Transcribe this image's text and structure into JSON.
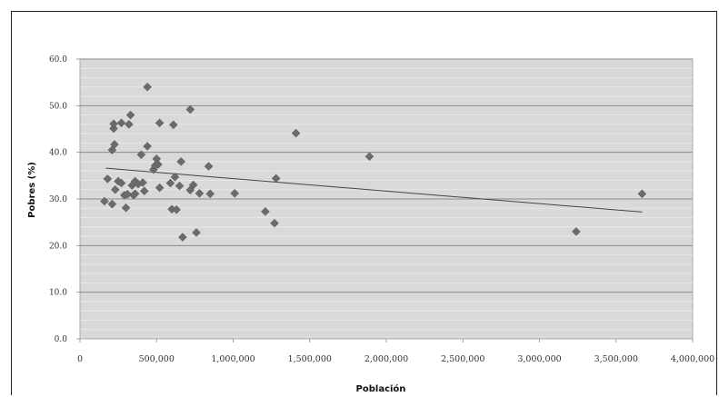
{
  "chart_data": {
    "type": "scatter",
    "title": "",
    "xlabel": "Población",
    "ylabel": "Pobres (%)",
    "xlim": [
      0,
      4000000
    ],
    "ylim": [
      0,
      60
    ],
    "x_ticks": [
      "0",
      "500,000",
      "1,000,000",
      "1,500,000",
      "2,000,000",
      "2,500,000",
      "3,000,000",
      "3,500,000",
      "4,000,000"
    ],
    "y_ticks": [
      "0.0",
      "10.0",
      "20.0",
      "30.0",
      "40.0",
      "50.0",
      "60.0"
    ],
    "grid": true,
    "legend": "none",
    "marker_color": "#6b6b6b",
    "background_color": "#d9d9d9",
    "trendline": {
      "type": "linear",
      "x": [
        170000,
        3670000
      ],
      "y": [
        36.6,
        27.2
      ]
    },
    "series": [
      {
        "points": [
          [
            160000,
            29.5
          ],
          [
            180000,
            34.3
          ],
          [
            210000,
            28.9
          ],
          [
            210000,
            40.5
          ],
          [
            220000,
            45.1
          ],
          [
            220000,
            46.1
          ],
          [
            225000,
            41.7
          ],
          [
            230000,
            32.0
          ],
          [
            250000,
            33.8
          ],
          [
            270000,
            46.3
          ],
          [
            270000,
            33.4
          ],
          [
            290000,
            30.8
          ],
          [
            300000,
            28.1
          ],
          [
            310000,
            31.0
          ],
          [
            320000,
            46.0
          ],
          [
            330000,
            48.0
          ],
          [
            340000,
            32.9
          ],
          [
            350000,
            30.8
          ],
          [
            360000,
            31.1
          ],
          [
            360000,
            33.8
          ],
          [
            380000,
            33.2
          ],
          [
            400000,
            39.5
          ],
          [
            410000,
            33.5
          ],
          [
            420000,
            31.7
          ],
          [
            440000,
            41.3
          ],
          [
            440000,
            54.0
          ],
          [
            480000,
            36.3
          ],
          [
            490000,
            37.1
          ],
          [
            500000,
            38.6
          ],
          [
            510000,
            37.4
          ],
          [
            520000,
            46.3
          ],
          [
            520000,
            32.4
          ],
          [
            590000,
            33.4
          ],
          [
            600000,
            27.8
          ],
          [
            610000,
            45.9
          ],
          [
            620000,
            34.7
          ],
          [
            630000,
            27.7
          ],
          [
            650000,
            32.8
          ],
          [
            660000,
            38.0
          ],
          [
            670000,
            21.8
          ],
          [
            720000,
            49.2
          ],
          [
            720000,
            31.9
          ],
          [
            740000,
            33.0
          ],
          [
            760000,
            22.8
          ],
          [
            780000,
            31.2
          ],
          [
            840000,
            37.0
          ],
          [
            850000,
            31.1
          ],
          [
            1010000,
            31.2
          ],
          [
            1210000,
            27.3
          ],
          [
            1270000,
            24.8
          ],
          [
            1280000,
            34.4
          ],
          [
            1410000,
            44.1
          ],
          [
            1890000,
            39.1
          ],
          [
            3240000,
            23.0
          ],
          [
            3670000,
            31.1
          ]
        ]
      }
    ]
  }
}
